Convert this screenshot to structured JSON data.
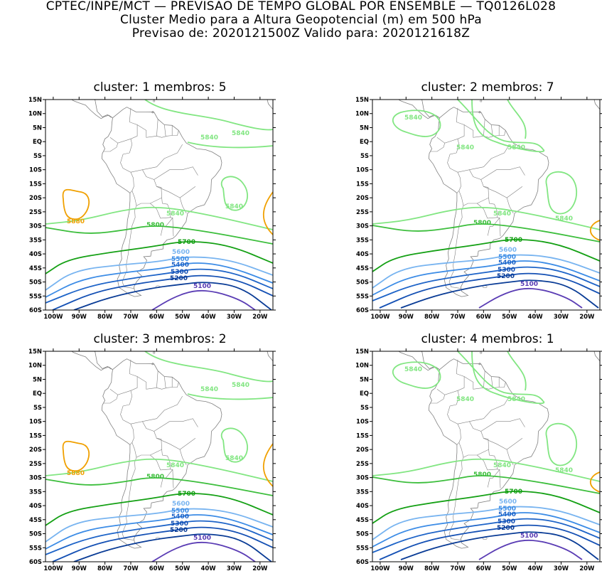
{
  "header": {
    "line1": "CPTEC/INPE/MCT — PREVISAO DE TEMPO GLOBAL POR ENSEMBLE — TQ0126L028",
    "line2": "Cluster Medio para a Altura Geopotencial (m) em 500 hPa",
    "line3": "Previsao de: 2020121500Z   Valido para: 2020121618Z"
  },
  "panels": [
    {
      "title": "cluster: 1   membros: 5"
    },
    {
      "title": "cluster: 2   membros: 7"
    },
    {
      "title": "cluster: 3   membros: 2"
    },
    {
      "title": "cluster: 4   membros: 1"
    }
  ],
  "axes": {
    "lat_ticks": [
      "15N",
      "10N",
      "5N",
      "EQ",
      "5S",
      "10S",
      "15S",
      "20S",
      "25S",
      "30S",
      "35S",
      "40S",
      "45S",
      "50S",
      "55S",
      "60S"
    ],
    "lon_ticks": [
      "100W",
      "90W",
      "80W",
      "70W",
      "60W",
      "50W",
      "40W",
      "30W",
      "20W"
    ]
  },
  "contour_colors": {
    "5880": "#f0a000",
    "5840": "#82e682",
    "5800": "#3cbe3c",
    "5700": "#14a014",
    "5600": "#78b4f0",
    "5500": "#3c8ce6",
    "5400": "#1e64c8",
    "5300": "#1450b4",
    "5200": "#0a3c96",
    "5100": "#5a3cb4",
    "coast": "#808080"
  },
  "contour_labels": {
    "c5880": "5880",
    "c5840": "5840",
    "c5800": "5800",
    "c5700": "5700",
    "c5600": "5600",
    "c5500": "5500",
    "c5400": "5400",
    "c5300": "5300",
    "c5200": "5200",
    "c5100": "5100"
  }
}
